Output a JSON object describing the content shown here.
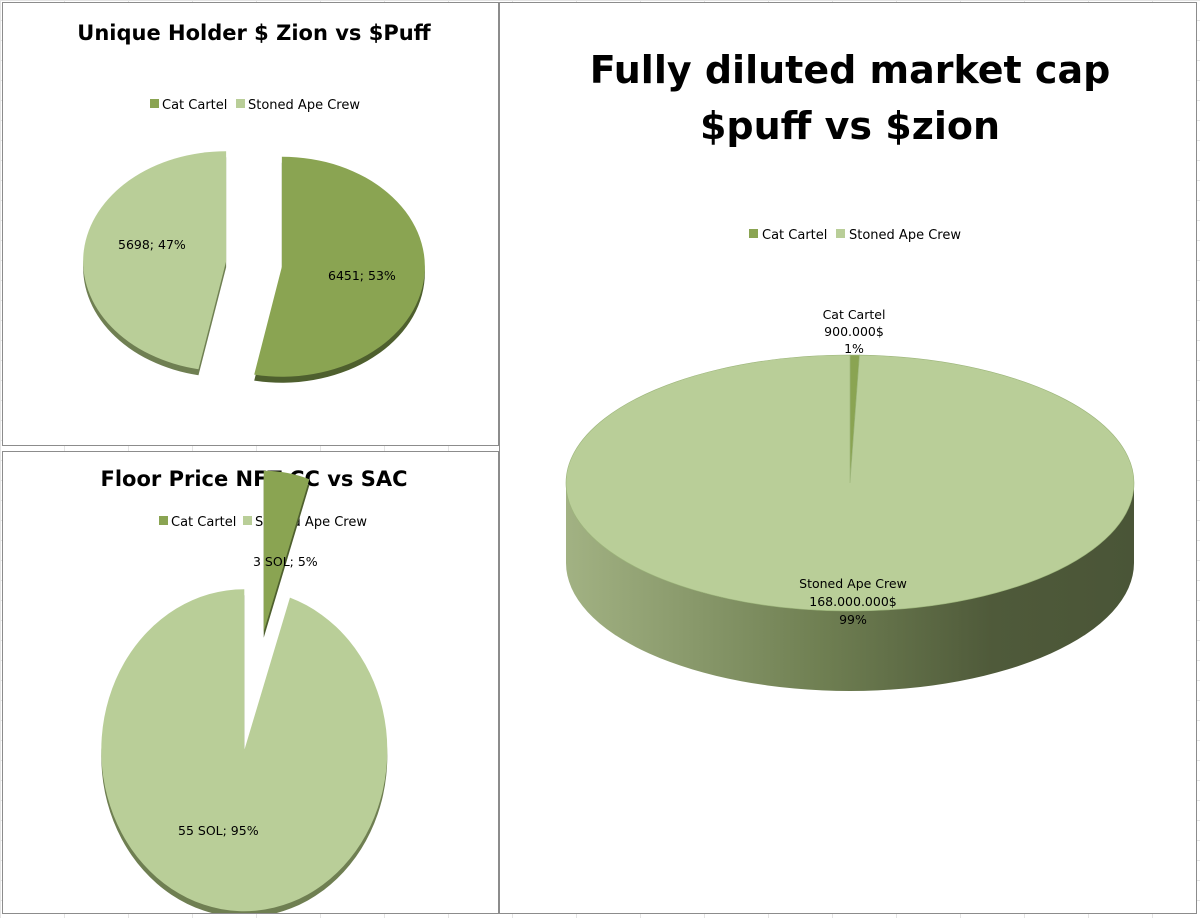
{
  "colors": {
    "cat_cartel": "#8aa452",
    "stoned_ape_crew": "#b9ce98",
    "cat_cartel_side": "#4e5f2e",
    "stoned_ape_crew_side": "#6f7f52"
  },
  "chart_data": [
    {
      "type": "pie",
      "title": "Unique Holder $ Zion vs $Puff",
      "legend_position": "top",
      "legend": [
        "Cat Cartel",
        "Stoned Ape Crew"
      ],
      "categories": [
        "Cat Cartel",
        "Stoned Ape Crew"
      ],
      "values": [
        6451,
        5698
      ],
      "percents": [
        53,
        47
      ],
      "data_labels": [
        "6451; 53%",
        "5698; 47%"
      ]
    },
    {
      "type": "pie",
      "title": "Floor Price NFT CC vs SAC",
      "legend_position": "top",
      "legend": [
        "Cat Cartel",
        "Stoned Ape Crew"
      ],
      "categories": [
        "Cat Cartel",
        "Stoned Ape Crew"
      ],
      "values": [
        3,
        55
      ],
      "percents": [
        5,
        95
      ],
      "data_labels": [
        "3 SOL; 5%",
        "55 SOL; 95%"
      ]
    },
    {
      "type": "pie",
      "title_lines": [
        "Fully diluted market cap",
        "$puff vs $zion"
      ],
      "legend_position": "top",
      "legend": [
        "Cat Cartel",
        "Stoned Ape Crew"
      ],
      "categories": [
        "Cat Cartel",
        "Stoned Ape Crew"
      ],
      "values": [
        900000,
        168000000
      ],
      "percents": [
        1,
        99
      ],
      "data_labels": [
        [
          "Cat Cartel",
          "900.000$",
          "1%"
        ],
        [
          "Stoned Ape Crew",
          "168.000.000$",
          "99%"
        ]
      ]
    }
  ]
}
